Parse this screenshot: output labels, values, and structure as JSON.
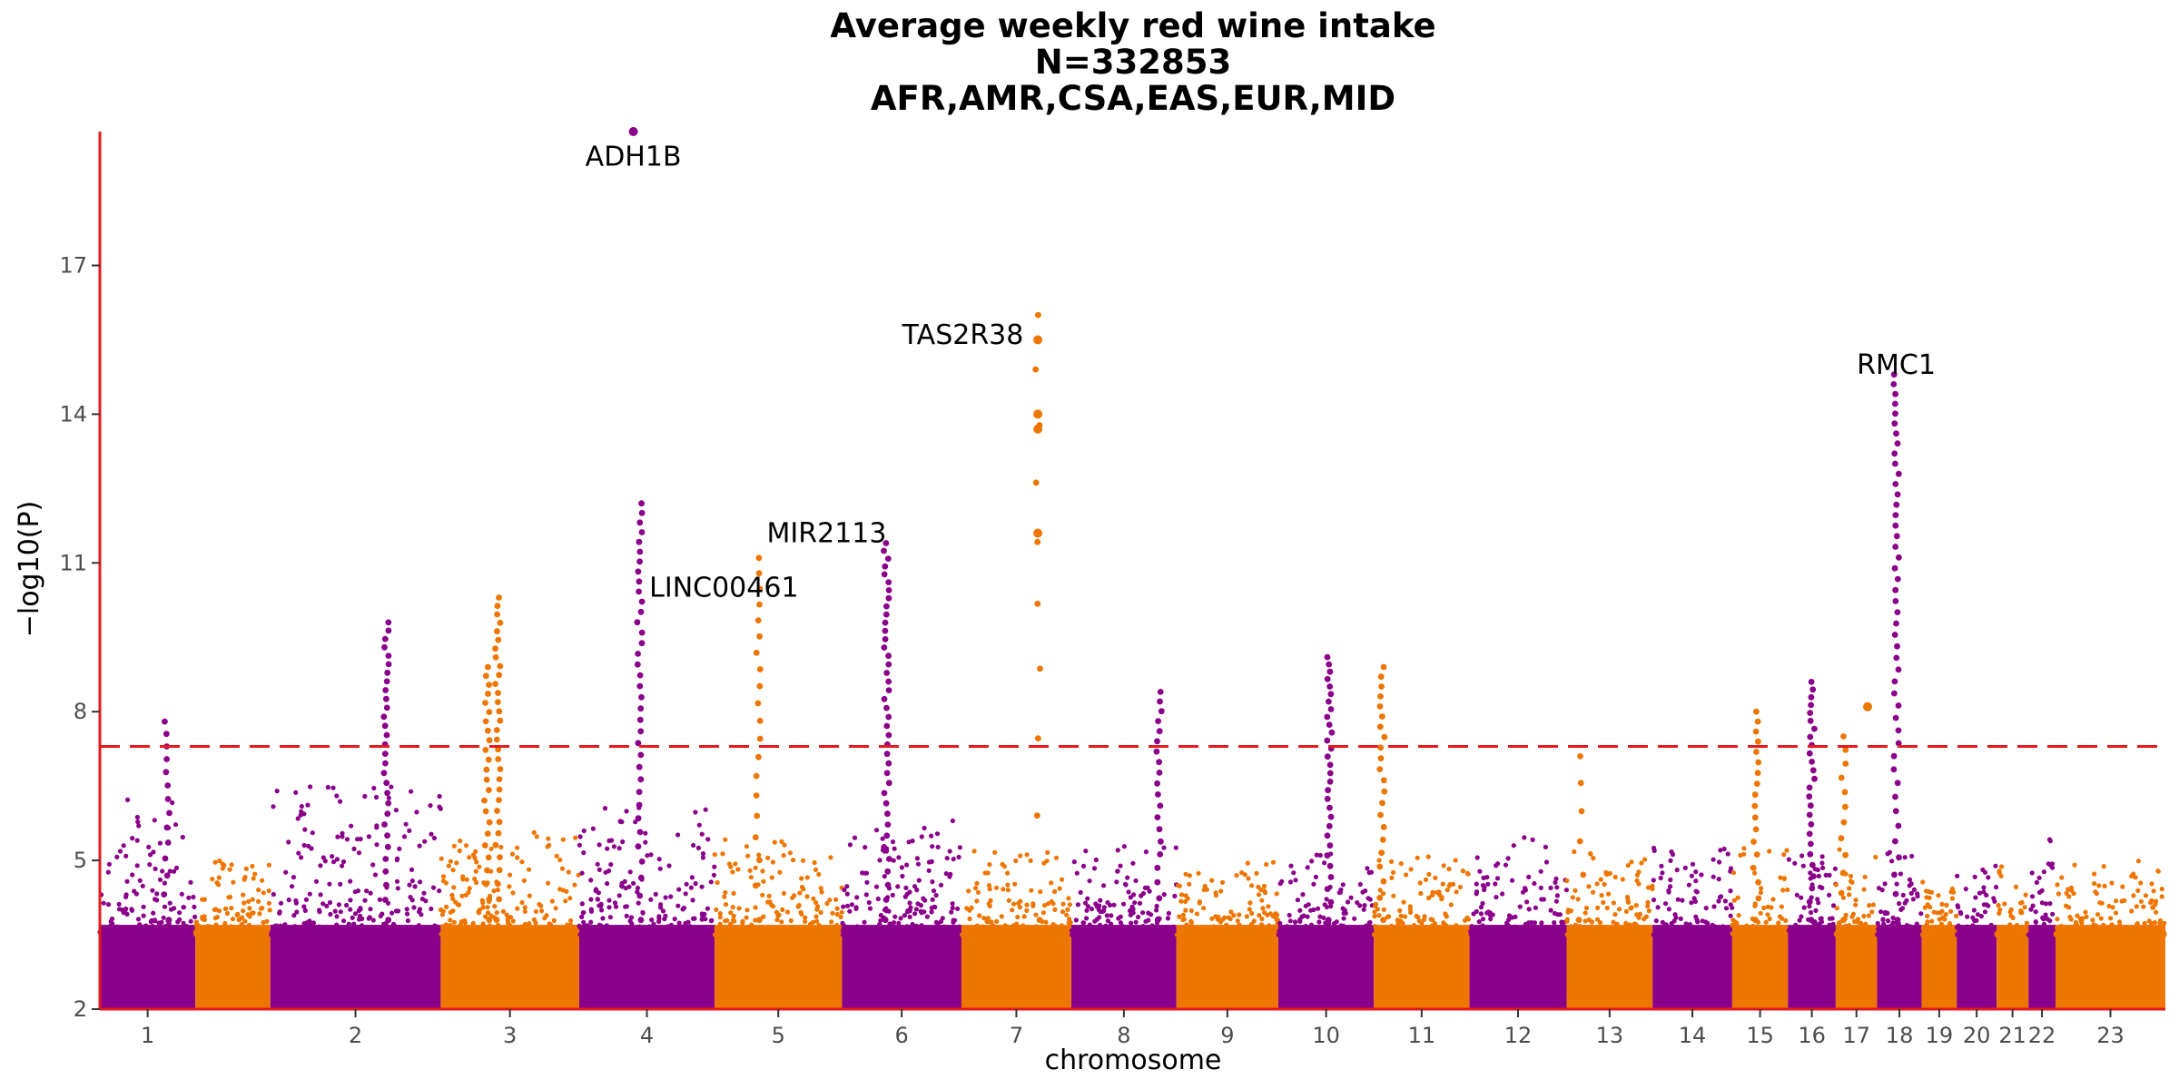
{
  "colors": {
    "odd": "#8B008B",
    "even": "#EE7600",
    "axis": "#E41A1C",
    "threshold": "#E41A1C"
  },
  "chart_data": {
    "type": "scatter",
    "title_lines": [
      "Average weekly red wine intake",
      "N=332853",
      "AFR,AMR,CSA,EAS,EUR,MID"
    ],
    "xlabel": "chromosome",
    "ylabel": "−log10(P)",
    "ylim": [
      2,
      19.7
    ],
    "yticks": [
      2,
      5,
      8,
      11,
      14,
      17
    ],
    "threshold": 7.3,
    "chromosomes": [
      {
        "label": "1",
        "start": 0,
        "end": 60,
        "base_max": 6.3
      },
      {
        "label": "",
        "start": 60,
        "end": 107,
        "base_max": 5.0
      },
      {
        "label": "2",
        "start": 107,
        "end": 214,
        "base_max": 6.5
      },
      {
        "label": "3",
        "start": 214,
        "end": 301,
        "base_max": 5.6
      },
      {
        "label": "4",
        "start": 301,
        "end": 386,
        "base_max": 6.2
      },
      {
        "label": "5",
        "start": 386,
        "end": 466,
        "base_max": 5.5
      },
      {
        "label": "6",
        "start": 466,
        "end": 541,
        "base_max": 5.8
      },
      {
        "label": "7",
        "start": 541,
        "end": 610,
        "base_max": 5.2
      },
      {
        "label": "8",
        "start": 610,
        "end": 676,
        "base_max": 5.3
      },
      {
        "label": "9",
        "start": 676,
        "end": 740,
        "base_max": 5.0
      },
      {
        "label": "10",
        "start": 740,
        "end": 800,
        "base_max": 5.2
      },
      {
        "label": "11",
        "start": 800,
        "end": 860,
        "base_max": 5.1
      },
      {
        "label": "12",
        "start": 860,
        "end": 921,
        "base_max": 5.5
      },
      {
        "label": "13",
        "start": 921,
        "end": 975,
        "base_max": 5.2
      },
      {
        "label": "14",
        "start": 975,
        "end": 1025,
        "base_max": 5.3
      },
      {
        "label": "15",
        "start": 1025,
        "end": 1060,
        "base_max": 5.3
      },
      {
        "label": "16",
        "start": 1060,
        "end": 1090,
        "base_max": 5.1
      },
      {
        "label": "17",
        "start": 1090,
        "end": 1116,
        "base_max": 5.3
      },
      {
        "label": "18",
        "start": 1116,
        "end": 1144,
        "base_max": 5.2
      },
      {
        "label": "19",
        "start": 1144,
        "end": 1166,
        "base_max": 4.8
      },
      {
        "label": "20",
        "start": 1166,
        "end": 1191,
        "base_max": 4.9
      },
      {
        "label": "21",
        "start": 1191,
        "end": 1211,
        "base_max": 4.9
      },
      {
        "label": "22",
        "start": 1211,
        "end": 1228,
        "base_max": 5.5
      },
      {
        "label": "23",
        "start": 1228,
        "end": 1297,
        "base_max": 5.0
      }
    ],
    "peaks": [
      {
        "chr": "1",
        "pos": 42,
        "top": 7.8,
        "n": 14
      },
      {
        "chr": "2",
        "pos": 180,
        "top": 9.8,
        "n": 30
      },
      {
        "chr": "3",
        "pos": 243,
        "top": 8.9,
        "n": 24
      },
      {
        "chr": "3",
        "pos": 250,
        "top": 10.3,
        "n": 32
      },
      {
        "chr": "4",
        "pos": 339,
        "top": 12.2,
        "n": 36
      },
      {
        "chr": "5",
        "pos": 413,
        "top": 11.1,
        "n": 20
      },
      {
        "chr": "6",
        "pos": 494,
        "top": 11.4,
        "n": 40
      },
      {
        "chr": "7",
        "pos": 589,
        "top": 16.0,
        "n": 10
      },
      {
        "chr": "8",
        "pos": 665,
        "top": 8.4,
        "n": 20
      },
      {
        "chr": "10",
        "pos": 772,
        "top": 9.1,
        "n": 30
      },
      {
        "chr": "11",
        "pos": 805,
        "top": 8.9,
        "n": 22
      },
      {
        "chr": "13",
        "pos": 930,
        "top": 7.1,
        "n": 6
      },
      {
        "chr": "15",
        "pos": 1040,
        "top": 8.0,
        "n": 18
      },
      {
        "chr": "16",
        "pos": 1075,
        "top": 8.6,
        "n": 26
      },
      {
        "chr": "17",
        "pos": 1095,
        "top": 7.5,
        "n": 12
      },
      {
        "chr": "18",
        "pos": 1128,
        "top": 14.8,
        "n": 46
      }
    ],
    "extra_points": [
      {
        "chr": "4",
        "pos": 335,
        "y": 19.7
      },
      {
        "chr": "7",
        "pos": 589,
        "y": 15.5
      },
      {
        "chr": "7",
        "pos": 589,
        "y": 14.0
      },
      {
        "chr": "7",
        "pos": 589,
        "y": 13.7
      },
      {
        "chr": "7",
        "pos": 589,
        "y": 11.6
      },
      {
        "chr": "17",
        "pos": 1110,
        "y": 8.1
      }
    ],
    "annotations": [
      {
        "text": "ADH1B",
        "chr": "4",
        "pos": 335,
        "y": 19.2,
        "anchor": "middle"
      },
      {
        "text": "TAS2R38",
        "chr": "7",
        "pos": 580,
        "y": 15.6,
        "anchor": "end"
      },
      {
        "text": "RMC1",
        "chr": "18",
        "pos": 1128,
        "y": 15.0,
        "anchor": "middle"
      },
      {
        "text": "MIR2113",
        "chr": "6",
        "pos": 494,
        "y": 11.6,
        "anchor": "end"
      },
      {
        "text": "LINC00461",
        "chr": "4",
        "pos": 345,
        "y": 10.5,
        "anchor": "start"
      }
    ]
  }
}
